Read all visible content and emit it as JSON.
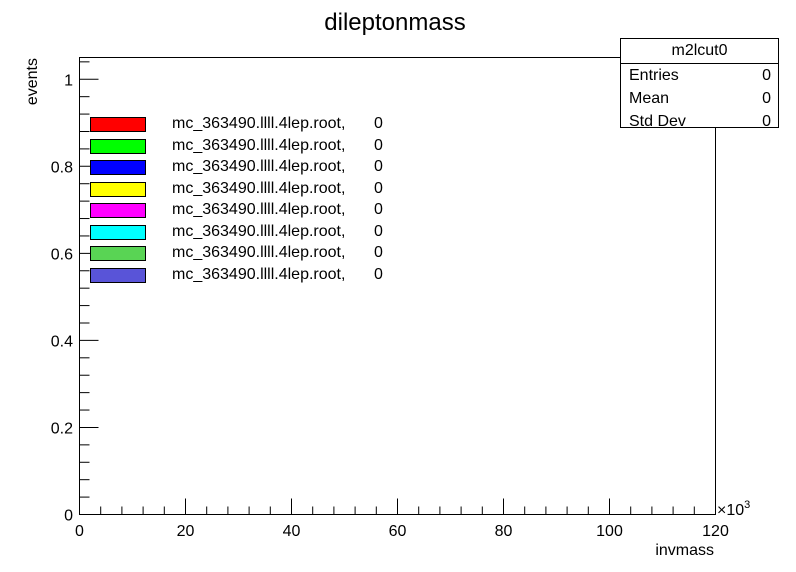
{
  "chart_data": {
    "type": "bar",
    "title": "dileptonmass",
    "xlabel": "invmass",
    "ylabel": "events",
    "xlim": [
      0,
      120
    ],
    "ylim": [
      0,
      1.05
    ],
    "x_multiplier_label": "×10",
    "x_multiplier_exp": "3",
    "x_ticks": [
      0,
      20,
      40,
      60,
      80,
      100,
      120
    ],
    "y_ticks": [
      0,
      0.2,
      0.4,
      0.6,
      0.8,
      1
    ],
    "x_tick_labels": [
      "0",
      "20",
      "40",
      "60",
      "80",
      "100",
      "120"
    ],
    "y_tick_labels": [
      "0",
      "0.2",
      "0.4",
      "0.6",
      "0.8",
      "1"
    ],
    "x_minor_per_major": 4,
    "y_minor_per_major": 4,
    "grid": false,
    "series": [
      {
        "name": "mc_363490.llll.4lep.root,",
        "color": "#ff0000",
        "entries": "0"
      },
      {
        "name": "mc_363490.llll.4lep.root,",
        "color": "#00ff00",
        "entries": "0"
      },
      {
        "name": "mc_363490.llll.4lep.root,",
        "color": "#0000ff",
        "entries": "0"
      },
      {
        "name": "mc_363490.llll.4lep.root,",
        "color": "#ffff00",
        "entries": "0"
      },
      {
        "name": "mc_363490.llll.4lep.root,",
        "color": "#ff00ff",
        "entries": "0"
      },
      {
        "name": "mc_363490.llll.4lep.root,",
        "color": "#00ffff",
        "entries": "0"
      },
      {
        "name": "mc_363490.llll.4lep.root,",
        "color": "#59d454",
        "entries": "0"
      },
      {
        "name": "mc_363490.llll.4lep.root,",
        "color": "#5954d8",
        "entries": "0"
      }
    ],
    "values": []
  },
  "stats": {
    "title": "m2lcut0",
    "rows": [
      {
        "label": "Entries",
        "value": "0"
      },
      {
        "label": "Mean",
        "value": "0"
      },
      {
        "label": "Std Dev",
        "value": "0"
      }
    ]
  }
}
